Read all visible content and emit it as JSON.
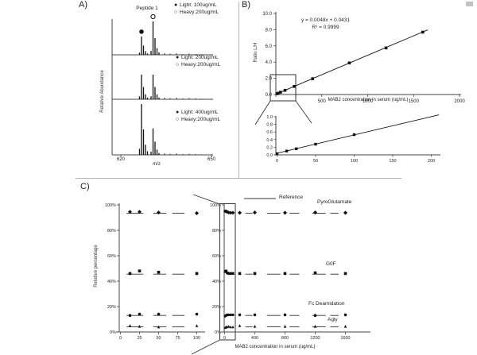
{
  "panels": {
    "a_label": "A)",
    "b_label": "B)",
    "c_label": "C)"
  },
  "panel_a": {
    "title": "Peptide 1",
    "ylabel": "Relative Abundance",
    "xlabel": "m/z",
    "x_tick_left": "620",
    "x_tick_right": "650",
    "marker_filled_glyph": "●",
    "marker_open_glyph": "○",
    "legends": [
      {
        "light": "Light: 100ug/mL",
        "heavy": "Heavy:200ug/mL"
      },
      {
        "light": "Light: 200ug/mL",
        "heavy": "Heavy:200ug/mL"
      },
      {
        "light": "Light: 400ug/mL",
        "heavy": "Heavy:200ug/mL"
      }
    ]
  },
  "panel_b": {
    "equation": "y = 0.0048x + 0.0431",
    "r_squared": "R² = 0.9999",
    "ylabel": "Ratio L/H",
    "xlabel": "MAB2 concentration in serum (ug/mL)"
  },
  "panel_c": {
    "ylabel": "Relative percentage",
    "xlabel": "MAB2 concentration in serum (ug/mL)",
    "reference_label": "Reference"
  },
  "chart_data": [
    {
      "id": "a_spectra",
      "type": "line",
      "title": "Peptide 1",
      "xlabel": "m/z",
      "ylabel": "Relative Abundance",
      "x_ticks": [
        620,
        650
      ],
      "isotope_pattern": [
        0.12,
        1,
        0.5,
        0.2,
        0.07
      ],
      "spectra": [
        {
          "light_label": "Light: 100ug/mL",
          "heavy_label": "Heavy:200ug/mL",
          "light_rel_intensity": 0.55,
          "heavy_rel_intensity": 1
        },
        {
          "light_label": "Light: 200ug/mL",
          "heavy_label": "Heavy:200ug/mL",
          "light_rel_intensity": 1,
          "heavy_rel_intensity": 1
        },
        {
          "light_label": "Light: 400ug/mL",
          "heavy_label": "Heavy:200ug/mL",
          "light_rel_intensity": 1,
          "heavy_rel_intensity": 0.52
        }
      ]
    },
    {
      "id": "b_main",
      "type": "scatter",
      "equation": "y = 0.0048x + 0.0431",
      "r_squared": "R² = 0.9999",
      "xlabel": "MAB2 concentration in serum (ug/mL)",
      "ylabel": "Ratio L/H",
      "xlim": [
        0,
        2000
      ],
      "ylim": [
        0,
        10
      ],
      "x_ticks": [
        0,
        500,
        1000,
        1500,
        2000
      ],
      "y_ticks": [
        0,
        2,
        4,
        6,
        8,
        10
      ],
      "x": [
        12.5,
        25,
        50,
        100,
        200,
        400,
        800,
        1200,
        1600
      ],
      "y": [
        0.1,
        0.16,
        0.28,
        0.52,
        1,
        1.95,
        3.9,
        5.75,
        7.7
      ],
      "trend": {
        "slope": 0.0048,
        "intercept": 0.0431
      }
    },
    {
      "id": "b_inset",
      "type": "scatter",
      "xlim": [
        0,
        210
      ],
      "ylim": [
        0,
        1.05
      ],
      "x_ticks": [
        0,
        50,
        100,
        150,
        200
      ],
      "y_ticks": [
        0,
        0.2,
        0.4,
        0.6,
        0.8,
        1
      ],
      "x": [
        0,
        12.5,
        25,
        50,
        100
      ],
      "y": [
        0.03,
        0.1,
        0.16,
        0.28,
        0.53
      ],
      "trend": {
        "slope": 0.0048,
        "intercept": 0.0431
      }
    },
    {
      "id": "c_left",
      "type": "scatter",
      "ylabel": "Relative percentage",
      "xlim": [
        0,
        110
      ],
      "ylim": [
        0,
        105
      ],
      "x_ticks": [
        0,
        25,
        50,
        75,
        100
      ],
      "y_ticks": [
        0,
        20,
        40,
        60,
        80,
        100
      ],
      "series": [
        {
          "name": "PyroGlutamate",
          "marker": "diamond",
          "x": [
            12.5,
            25,
            50,
            100
          ],
          "y": [
            94.5,
            94.5,
            94,
            93.5
          ],
          "ref_value": 93.5,
          "ref_segments": [
            [
              8,
              30
            ],
            [
              43,
              60
            ],
            [
              68,
              84
            ]
          ]
        },
        {
          "name": "G0F",
          "marker": "square",
          "x": [
            12.5,
            25,
            50,
            100
          ],
          "y": [
            46,
            48,
            47,
            46
          ],
          "ref_value": 45.5,
          "ref_segments": [
            [
              8,
              30
            ],
            [
              43,
              60
            ],
            [
              68,
              84
            ]
          ]
        },
        {
          "name": "Fc Deamidation",
          "marker": "circle",
          "x": [
            12.5,
            25,
            50,
            100
          ],
          "y": [
            13,
            14,
            14,
            14
          ],
          "ref_value": 13,
          "ref_segments": [
            [
              8,
              30
            ],
            [
              43,
              60
            ],
            [
              68,
              84
            ]
          ]
        },
        {
          "name": "Agly",
          "marker": "triangle",
          "x": [
            12.5,
            25,
            50,
            100
          ],
          "y": [
            5,
            4.5,
            4,
            5
          ],
          "ref_value": 4,
          "ref_segments": [
            [
              8,
              30
            ],
            [
              43,
              60
            ],
            [
              68,
              84
            ]
          ]
        }
      ]
    },
    {
      "id": "c_right",
      "type": "scatter",
      "xlabel": "MAB2 concentration in serum (ug/mL)",
      "legend": "Reference",
      "xlim": [
        0,
        1700
      ],
      "ylim": [
        0,
        105
      ],
      "x_ticks": [
        0,
        400,
        800,
        1200,
        1600
      ],
      "y_ticks": [
        0,
        20,
        40,
        60,
        80,
        100
      ],
      "series": [
        {
          "name": "PyroGlutamate",
          "marker": "diamond",
          "cluster_x": [
            8,
            20,
            35,
            55,
            80,
            110
          ],
          "cluster_y": [
            95,
            95,
            94.5,
            94,
            93.8,
            93.8
          ],
          "x": [
            200,
            400,
            800,
            1200,
            1600
          ],
          "y": [
            93.8,
            94,
            93.8,
            94,
            93.8
          ],
          "ref_value": 93.5,
          "ref_segments": [
            [
              275,
              370
            ],
            [
              560,
              740
            ],
            [
              860,
              990
            ],
            [
              1160,
              1340
            ],
            [
              1400,
              1510
            ]
          ]
        },
        {
          "name": "G0F",
          "marker": "square",
          "cluster_x": [
            8,
            20,
            35,
            55,
            80,
            110
          ],
          "cluster_y": [
            47.5,
            48,
            46.5,
            46,
            46,
            46
          ],
          "x": [
            200,
            400,
            800,
            1200,
            1600
          ],
          "y": [
            46,
            46,
            46,
            46.5,
            46
          ],
          "ref_value": 45.5,
          "ref_segments": [
            [
              275,
              370
            ],
            [
              560,
              740
            ],
            [
              860,
              990
            ],
            [
              1160,
              1340
            ],
            [
              1400,
              1510
            ]
          ]
        },
        {
          "name": "Fc Deamidation",
          "marker": "circle",
          "cluster_x": [
            8,
            20,
            35,
            55,
            80,
            110
          ],
          "cluster_y": [
            12.5,
            13,
            13.5,
            13.5,
            13.5,
            13.5
          ],
          "x": [
            200,
            400,
            800,
            1200,
            1600
          ],
          "y": [
            13.5,
            13.5,
            13.5,
            13,
            13.5
          ],
          "ref_value": 13,
          "ref_segments": [
            [
              275,
              370
            ],
            [
              560,
              740
            ],
            [
              860,
              990
            ],
            [
              1160,
              1340
            ],
            [
              1400,
              1510
            ]
          ]
        },
        {
          "name": "Agly",
          "marker": "triangle",
          "cluster_x": [
            8,
            20,
            35,
            55,
            80,
            110
          ],
          "cluster_y": [
            3.5,
            4,
            4,
            4.5,
            4,
            4
          ],
          "x": [
            200,
            400,
            800,
            1200,
            1600
          ],
          "y": [
            5,
            4.5,
            4.5,
            4.5,
            4.5
          ],
          "ref_value": 4,
          "ref_segments": [
            [
              275,
              370
            ],
            [
              560,
              740
            ],
            [
              860,
              990
            ],
            [
              1160,
              1340
            ],
            [
              1400,
              1510
            ]
          ]
        }
      ]
    }
  ]
}
